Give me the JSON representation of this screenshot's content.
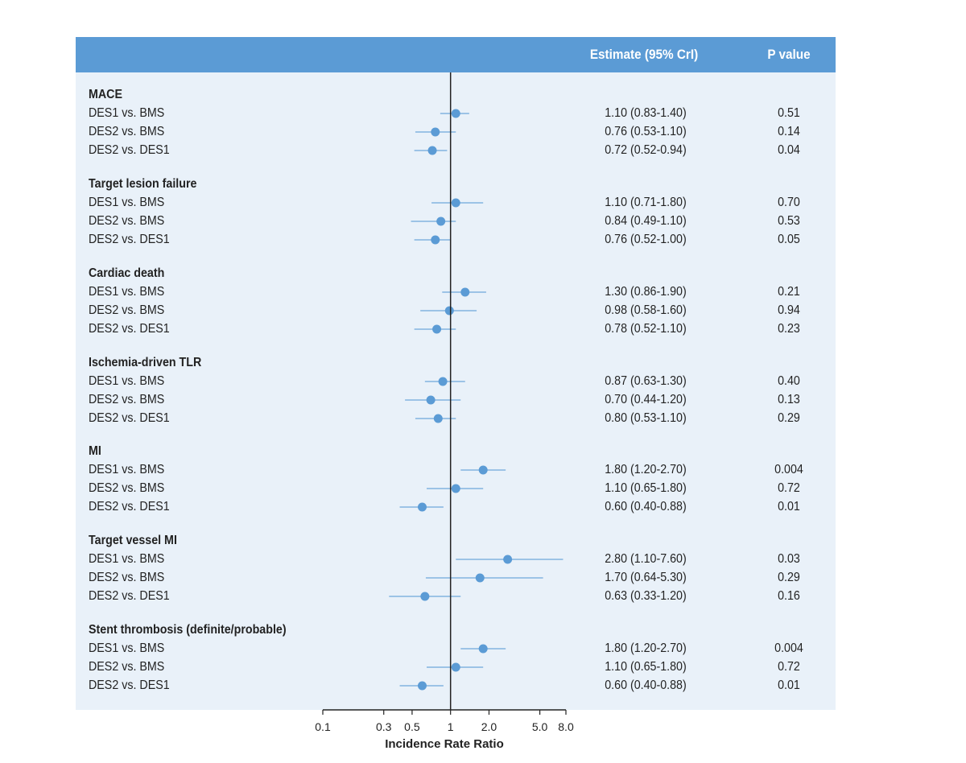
{
  "header": {
    "estimate_label": "Estimate (95% CrI)",
    "p_label": "P value"
  },
  "chart_data": {
    "type": "forest",
    "xlabel": "Incidence Rate Ratio",
    "xscale": "log",
    "xlim": [
      0.1,
      8.0
    ],
    "ticks": [
      0.1,
      0.3,
      0.5,
      1,
      2.0,
      5.0,
      8.0
    ],
    "tick_labels": [
      "0.1",
      "0.3",
      "0.5",
      "1",
      "2.0",
      "5.0",
      "8.0"
    ],
    "reference_line": 1,
    "marker_color": "#5b9bd5",
    "groups": [
      {
        "name": "MACE",
        "rows": [
          {
            "label": "DES1 vs. BMS",
            "est": 1.1,
            "lo": 0.83,
            "hi": 1.4,
            "text": "1.10 (0.83-1.40)",
            "p": "0.51"
          },
          {
            "label": "DES2 vs. BMS",
            "est": 0.76,
            "lo": 0.53,
            "hi": 1.1,
            "text": "0.76 (0.53-1.10)",
            "p": "0.14"
          },
          {
            "label": "DES2 vs. DES1",
            "est": 0.72,
            "lo": 0.52,
            "hi": 0.94,
            "text": "0.72 (0.52-0.94)",
            "p": "0.04"
          }
        ]
      },
      {
        "name": "Target lesion failure",
        "rows": [
          {
            "label": "DES1 vs. BMS",
            "est": 1.1,
            "lo": 0.71,
            "hi": 1.8,
            "text": "1.10 (0.71-1.80)",
            "p": "0.70"
          },
          {
            "label": "DES2 vs. BMS",
            "est": 0.84,
            "lo": 0.49,
            "hi": 1.1,
            "text": "0.84 (0.49-1.10)",
            "p": "0.53"
          },
          {
            "label": "DES2 vs. DES1",
            "est": 0.76,
            "lo": 0.52,
            "hi": 1.0,
            "text": "0.76 (0.52-1.00)",
            "p": "0.05"
          }
        ]
      },
      {
        "name": "Cardiac death",
        "rows": [
          {
            "label": "DES1 vs. BMS",
            "est": 1.3,
            "lo": 0.86,
            "hi": 1.9,
            "text": "1.30 (0.86-1.90)",
            "p": "0.21"
          },
          {
            "label": "DES2 vs. BMS",
            "est": 0.98,
            "lo": 0.58,
            "hi": 1.6,
            "text": "0.98 (0.58-1.60)",
            "p": "0.94"
          },
          {
            "label": "DES2 vs. DES1",
            "est": 0.78,
            "lo": 0.52,
            "hi": 1.1,
            "text": "0.78 (0.52-1.10)",
            "p": "0.23"
          }
        ]
      },
      {
        "name": "Ischemia-driven TLR",
        "rows": [
          {
            "label": "DES1 vs. BMS",
            "est": 0.87,
            "lo": 0.63,
            "hi": 1.3,
            "text": "0.87 (0.63-1.30)",
            "p": "0.40"
          },
          {
            "label": "DES2 vs. BMS",
            "est": 0.7,
            "lo": 0.44,
            "hi": 1.2,
            "text": "0.70 (0.44-1.20)",
            "p": "0.13"
          },
          {
            "label": "DES2 vs. DES1",
            "est": 0.8,
            "lo": 0.53,
            "hi": 1.1,
            "text": "0.80 (0.53-1.10)",
            "p": "0.29"
          }
        ]
      },
      {
        "name": "MI",
        "rows": [
          {
            "label": "DES1 vs. BMS",
            "est": 1.8,
            "lo": 1.2,
            "hi": 2.7,
            "text": "1.80 (1.20-2.70)",
            "p": "0.004"
          },
          {
            "label": "DES2 vs. BMS",
            "est": 1.1,
            "lo": 0.65,
            "hi": 1.8,
            "text": "1.10 (0.65-1.80)",
            "p": "0.72"
          },
          {
            "label": "DES2 vs. DES1",
            "est": 0.6,
            "lo": 0.4,
            "hi": 0.88,
            "text": "0.60 (0.40-0.88)",
            "p": "0.01"
          }
        ]
      },
      {
        "name": "Target vessel MI",
        "rows": [
          {
            "label": "DES1 vs. BMS",
            "est": 2.8,
            "lo": 1.1,
            "hi": 7.6,
            "text": "2.80 (1.10-7.60)",
            "p": "0.03"
          },
          {
            "label": "DES2 vs. BMS",
            "est": 1.7,
            "lo": 0.64,
            "hi": 5.3,
            "text": "1.70 (0.64-5.30)",
            "p": "0.29"
          },
          {
            "label": "DES2 vs. DES1",
            "est": 0.63,
            "lo": 0.33,
            "hi": 1.2,
            "text": "0.63 (0.33-1.20)",
            "p": "0.16"
          }
        ]
      },
      {
        "name": "Stent thrombosis (definite/probable)",
        "rows": [
          {
            "label": "DES1 vs. BMS",
            "est": 1.8,
            "lo": 1.2,
            "hi": 2.7,
            "text": "1.80 (1.20-2.70)",
            "p": "0.004"
          },
          {
            "label": "DES2 vs. BMS",
            "est": 1.1,
            "lo": 0.65,
            "hi": 1.8,
            "text": "1.10 (0.65-1.80)",
            "p": "0.72"
          },
          {
            "label": "DES2 vs. DES1",
            "est": 0.6,
            "lo": 0.4,
            "hi": 0.88,
            "text": "0.60 (0.40-0.88)",
            "p": "0.01"
          }
        ]
      }
    ]
  }
}
